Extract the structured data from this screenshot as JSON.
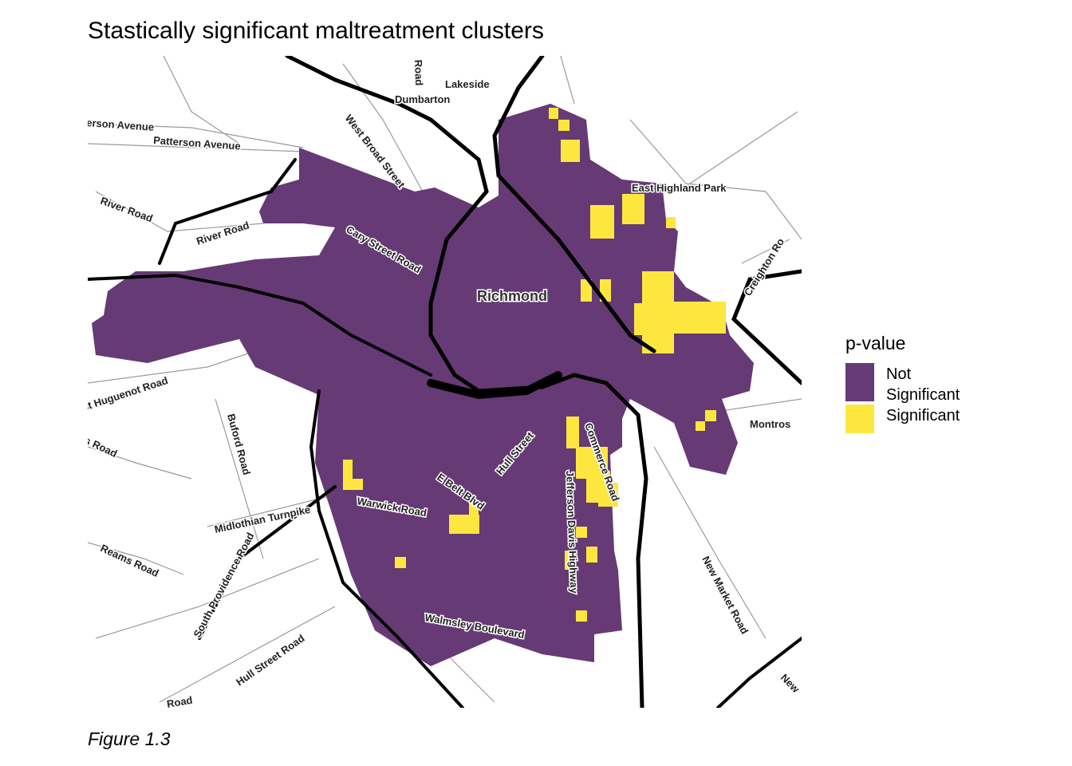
{
  "title": "Stastically significant maltreatment clusters",
  "caption": "Figure 1.3",
  "legend": {
    "title": "p-value",
    "items": [
      {
        "label": "Not Significant",
        "color": "#663a75"
      },
      {
        "label": "Significant",
        "color": "#fde73f"
      }
    ]
  },
  "map": {
    "places": [
      "Lakeside",
      "Dumbarton",
      "West Broad Street",
      "erson Avenue",
      "Patterson Avenue",
      "River Road",
      "River Road",
      "Cary Street Road",
      "Richmond",
      "East Highland Park",
      "Creighton Ro",
      "Montros",
      "st Huguenot Road",
      "Buford Road",
      "s Road",
      "Hull Street",
      "E Belt Blvd",
      "Warwick Road",
      "Midlothian Turnpike",
      "Reams Road",
      "South Providence Road",
      "Hull Street Road",
      "Walmsley Boulevard",
      "Jefferson Davis Highway",
      "Commerce Road",
      "New Market Road",
      "Road",
      "New",
      "Road"
    ]
  }
}
